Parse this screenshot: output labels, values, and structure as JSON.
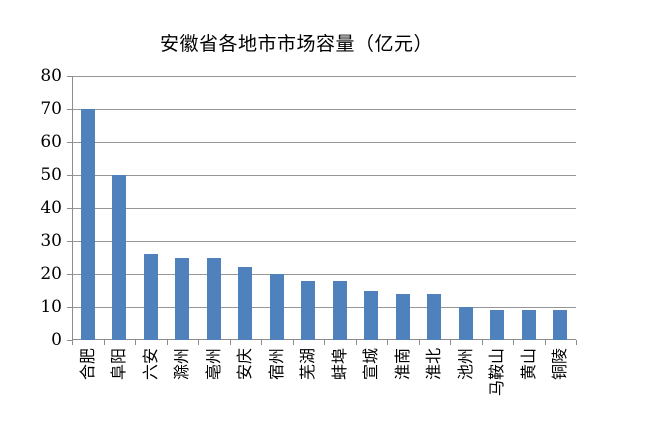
{
  "chart_data": {
    "type": "bar",
    "title": "安徽省各地市市场容量（亿元）",
    "categories": [
      "合肥",
      "阜阳",
      "六安",
      "滁州",
      "亳州",
      "安庆",
      "宿州",
      "芜湖",
      "蚌埠",
      "宣城",
      "淮南",
      "淮北",
      "池州",
      "马鞍山",
      "黄山",
      "铜陵"
    ],
    "values": [
      70,
      50,
      26,
      25,
      25,
      22,
      20,
      18,
      18,
      15,
      14,
      14,
      10,
      9,
      9,
      9
    ],
    "xlabel": "",
    "ylabel": "",
    "ylim": [
      0,
      80
    ],
    "ytick_step": 10,
    "ytick_labels": [
      "0",
      "10",
      "20",
      "30",
      "40",
      "50",
      "60",
      "70",
      "80"
    ],
    "grid": "horizontal",
    "legend_position": "none",
    "x_label_rotation": -90,
    "colors": {
      "bar": "#4F81BD",
      "gridline": "#969696",
      "axis": "#8C8C8C",
      "text": "#000000",
      "background": "#FFFFFF"
    }
  }
}
